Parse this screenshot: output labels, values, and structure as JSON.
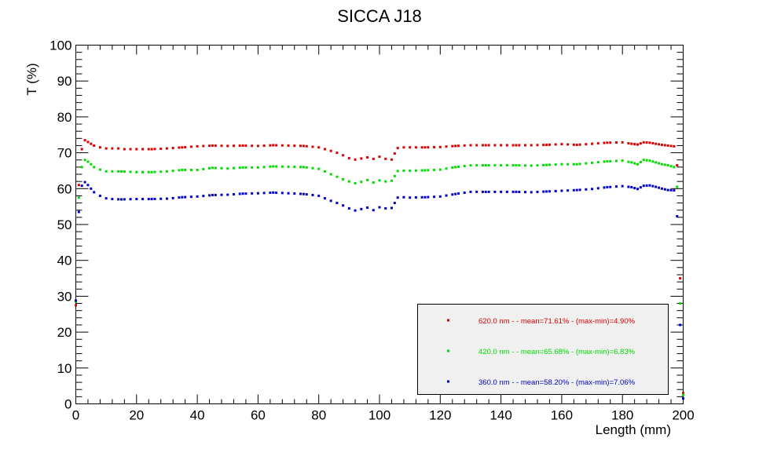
{
  "chart_data": {
    "type": "scatter",
    "title": "SICCA J18",
    "xlabel": "Length (mm)",
    "ylabel": "T (%)",
    "xlim": [
      0,
      200
    ],
    "ylim": [
      0,
      100
    ],
    "xticks": [
      "0",
      "20",
      "40",
      "60",
      "80",
      "100",
      "120",
      "140",
      "160",
      "180",
      "200"
    ],
    "yticks": [
      "0",
      "10",
      "20",
      "30",
      "40",
      "50",
      "60",
      "70",
      "80",
      "90",
      "100"
    ],
    "grid": false,
    "legend_position": "bottom-right",
    "series": [
      {
        "name": "620.0 nm -  - mean=71.61% - (max-min)=4.90%",
        "color": "#dd0000",
        "points": [
          [
            0,
            27.5
          ],
          [
            1,
            61
          ],
          [
            2,
            71
          ],
          [
            3,
            73.5
          ],
          [
            4,
            73
          ],
          [
            5,
            72.5
          ],
          [
            6,
            72
          ],
          [
            8,
            71.5
          ],
          [
            10,
            71.2
          ],
          [
            12,
            71.2
          ],
          [
            14,
            71.2
          ],
          [
            16,
            71
          ],
          [
            20,
            71
          ],
          [
            25,
            71
          ],
          [
            30,
            71.2
          ],
          [
            35,
            71.5
          ],
          [
            40,
            71.8
          ],
          [
            45,
            72
          ],
          [
            50,
            71.9
          ],
          [
            55,
            72
          ],
          [
            60,
            71.9
          ],
          [
            65,
            72.1
          ],
          [
            70,
            72
          ],
          [
            75,
            71.9
          ],
          [
            80,
            71.5
          ],
          [
            82,
            71
          ],
          [
            84,
            70.5
          ],
          [
            86,
            70
          ],
          [
            88,
            69.3
          ],
          [
            90,
            68.5
          ],
          [
            92,
            68.1
          ],
          [
            94,
            68.4
          ],
          [
            96,
            68.7
          ],
          [
            98,
            68.3
          ],
          [
            100,
            68.9
          ],
          [
            102,
            68.3
          ],
          [
            104,
            68.1
          ],
          [
            105,
            69.8
          ],
          [
            106,
            71.3
          ],
          [
            108,
            71.5
          ],
          [
            110,
            71.5
          ],
          [
            115,
            71.5
          ],
          [
            120,
            71.6
          ],
          [
            125,
            71.9
          ],
          [
            130,
            72.1
          ],
          [
            135,
            72.1
          ],
          [
            140,
            72.1
          ],
          [
            145,
            72.1
          ],
          [
            150,
            72.1
          ],
          [
            155,
            72.2
          ],
          [
            160,
            72.4
          ],
          [
            165,
            72.2
          ],
          [
            170,
            72.5
          ],
          [
            175,
            72.8
          ],
          [
            180,
            72.9
          ],
          [
            183,
            72.5
          ],
          [
            185,
            72.3
          ],
          [
            187,
            72.9
          ],
          [
            189,
            72.8
          ],
          [
            191,
            72.5
          ],
          [
            193,
            72.2
          ],
          [
            195,
            72
          ],
          [
            197,
            71.8
          ],
          [
            198,
            66.5
          ],
          [
            199,
            35
          ],
          [
            200,
            3
          ]
        ]
      },
      {
        "name": "420.0 nm -  - mean=65.68% - (max-min)=6.83%",
        "color": "#00dd00",
        "points": [
          [
            0,
            28.5
          ],
          [
            1,
            57.5
          ],
          [
            2,
            66
          ],
          [
            3,
            68
          ],
          [
            4,
            67.5
          ],
          [
            5,
            66.8
          ],
          [
            6,
            66
          ],
          [
            8,
            65.3
          ],
          [
            10,
            64.8
          ],
          [
            12,
            64.8
          ],
          [
            15,
            64.8
          ],
          [
            20,
            64.6
          ],
          [
            25,
            64.6
          ],
          [
            30,
            64.8
          ],
          [
            35,
            65.2
          ],
          [
            40,
            65.2
          ],
          [
            45,
            65.8
          ],
          [
            50,
            65.6
          ],
          [
            55,
            65.9
          ],
          [
            60,
            65.9
          ],
          [
            65,
            66.2
          ],
          [
            70,
            66.1
          ],
          [
            75,
            66
          ],
          [
            80,
            65.5
          ],
          [
            82,
            64.8
          ],
          [
            84,
            64
          ],
          [
            86,
            63.3
          ],
          [
            88,
            62.6
          ],
          [
            90,
            62
          ],
          [
            92,
            61.5
          ],
          [
            94,
            61.9
          ],
          [
            96,
            62.4
          ],
          [
            98,
            61.7
          ],
          [
            100,
            62.3
          ],
          [
            102,
            62
          ],
          [
            104,
            62.2
          ],
          [
            105,
            63.5
          ],
          [
            106,
            64.9
          ],
          [
            108,
            65
          ],
          [
            110,
            65
          ],
          [
            115,
            65.1
          ],
          [
            120,
            65.3
          ],
          [
            125,
            66
          ],
          [
            130,
            66.5
          ],
          [
            135,
            66.5
          ],
          [
            140,
            66.5
          ],
          [
            145,
            66.5
          ],
          [
            150,
            66.4
          ],
          [
            155,
            66.6
          ],
          [
            160,
            66.8
          ],
          [
            165,
            66.8
          ],
          [
            170,
            67.2
          ],
          [
            175,
            67.6
          ],
          [
            180,
            67.8
          ],
          [
            183,
            67.3
          ],
          [
            185,
            66.8
          ],
          [
            187,
            68
          ],
          [
            189,
            67.8
          ],
          [
            191,
            67.3
          ],
          [
            193,
            66.8
          ],
          [
            195,
            66.5
          ],
          [
            197,
            66
          ],
          [
            198,
            60.5
          ],
          [
            199,
            28
          ],
          [
            200,
            2.5
          ]
        ]
      },
      {
        "name": "360.0 nm -  - mean=58.20% - (max-min)=7.06%",
        "color": "#0000cc",
        "points": [
          [
            0,
            28.8
          ],
          [
            1,
            53.5
          ],
          [
            2,
            60.8
          ],
          [
            3,
            61.8
          ],
          [
            4,
            61
          ],
          [
            5,
            60
          ],
          [
            6,
            59
          ],
          [
            8,
            58
          ],
          [
            10,
            57.3
          ],
          [
            12,
            57.1
          ],
          [
            15,
            57
          ],
          [
            20,
            57.1
          ],
          [
            25,
            57.1
          ],
          [
            30,
            57.2
          ],
          [
            35,
            57.6
          ],
          [
            40,
            57.8
          ],
          [
            45,
            58.2
          ],
          [
            50,
            58.3
          ],
          [
            55,
            58.6
          ],
          [
            60,
            58.7
          ],
          [
            65,
            58.9
          ],
          [
            70,
            58.7
          ],
          [
            75,
            58.5
          ],
          [
            80,
            58
          ],
          [
            82,
            57.3
          ],
          [
            84,
            56.6
          ],
          [
            86,
            56
          ],
          [
            88,
            55.3
          ],
          [
            90,
            54.5
          ],
          [
            92,
            53.9
          ],
          [
            94,
            54.3
          ],
          [
            96,
            54.7
          ],
          [
            98,
            54
          ],
          [
            100,
            54.8
          ],
          [
            102,
            54.5
          ],
          [
            104,
            54.6
          ],
          [
            105,
            56
          ],
          [
            106,
            57.5
          ],
          [
            108,
            57.6
          ],
          [
            110,
            57.5
          ],
          [
            115,
            57.6
          ],
          [
            120,
            57.8
          ],
          [
            125,
            58.5
          ],
          [
            130,
            59.1
          ],
          [
            135,
            59.1
          ],
          [
            140,
            59.1
          ],
          [
            145,
            59.1
          ],
          [
            150,
            59
          ],
          [
            155,
            59.2
          ],
          [
            160,
            59.4
          ],
          [
            165,
            59.6
          ],
          [
            170,
            59.9
          ],
          [
            175,
            60.4
          ],
          [
            180,
            60.7
          ],
          [
            183,
            60.4
          ],
          [
            185,
            59.9
          ],
          [
            187,
            60.8
          ],
          [
            189,
            60.9
          ],
          [
            191,
            60.5
          ],
          [
            193,
            60
          ],
          [
            195,
            59.6
          ],
          [
            197,
            59.5
          ],
          [
            198,
            52.3
          ],
          [
            199,
            22
          ],
          [
            200,
            1.5
          ]
        ]
      }
    ]
  }
}
